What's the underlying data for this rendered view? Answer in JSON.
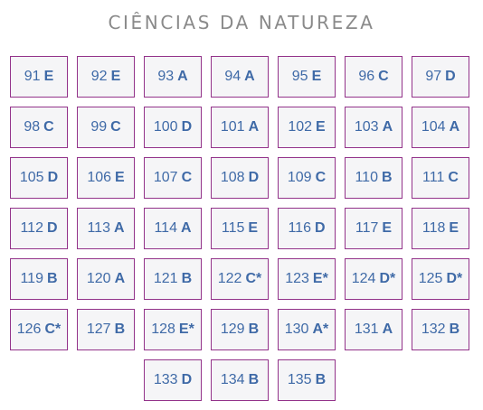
{
  "title": "CIÊNCIAS DA NATUREZA",
  "rows": [
    [
      {
        "number": "91",
        "answer": "E"
      },
      {
        "number": "92",
        "answer": "E"
      },
      {
        "number": "93",
        "answer": "A"
      },
      {
        "number": "94",
        "answer": "A"
      },
      {
        "number": "95",
        "answer": "E"
      },
      {
        "number": "96",
        "answer": "C"
      },
      {
        "number": "97",
        "answer": "D"
      }
    ],
    [
      {
        "number": "98",
        "answer": "C"
      },
      {
        "number": "99",
        "answer": "C"
      },
      {
        "number": "100",
        "answer": "D"
      },
      {
        "number": "101",
        "answer": "A"
      },
      {
        "number": "102",
        "answer": "E"
      },
      {
        "number": "103",
        "answer": "A"
      },
      {
        "number": "104",
        "answer": "A"
      }
    ],
    [
      {
        "number": "105",
        "answer": "D"
      },
      {
        "number": "106",
        "answer": "E"
      },
      {
        "number": "107",
        "answer": "C"
      },
      {
        "number": "108",
        "answer": "D"
      },
      {
        "number": "109",
        "answer": "C"
      },
      {
        "number": "110",
        "answer": "B"
      },
      {
        "number": "111",
        "answer": "C"
      }
    ],
    [
      {
        "number": "112",
        "answer": "D"
      },
      {
        "number": "113",
        "answer": "A"
      },
      {
        "number": "114",
        "answer": "A"
      },
      {
        "number": "115",
        "answer": "E"
      },
      {
        "number": "116",
        "answer": "D"
      },
      {
        "number": "117",
        "answer": "E"
      },
      {
        "number": "118",
        "answer": "E"
      }
    ],
    [
      {
        "number": "119",
        "answer": "B"
      },
      {
        "number": "120",
        "answer": "A"
      },
      {
        "number": "121",
        "answer": "B"
      },
      {
        "number": "122",
        "answer": "C*"
      },
      {
        "number": "123",
        "answer": "E*"
      },
      {
        "number": "124",
        "answer": "D*"
      },
      {
        "number": "125",
        "answer": "D*"
      }
    ],
    [
      {
        "number": "126",
        "answer": "C*"
      },
      {
        "number": "127",
        "answer": "B"
      },
      {
        "number": "128",
        "answer": "E*"
      },
      {
        "number": "129",
        "answer": "B"
      },
      {
        "number": "130",
        "answer": "A*"
      },
      {
        "number": "131",
        "answer": "A"
      },
      {
        "number": "132",
        "answer": "B"
      }
    ],
    [
      {
        "number": "133",
        "answer": "D"
      },
      {
        "number": "134",
        "answer": "B"
      },
      {
        "number": "135",
        "answer": "B"
      }
    ]
  ],
  "colors": {
    "border": "#93338a",
    "text": "#3f6aa7",
    "cell_background": "#f5f5f7",
    "title": "#8a8a8a"
  }
}
